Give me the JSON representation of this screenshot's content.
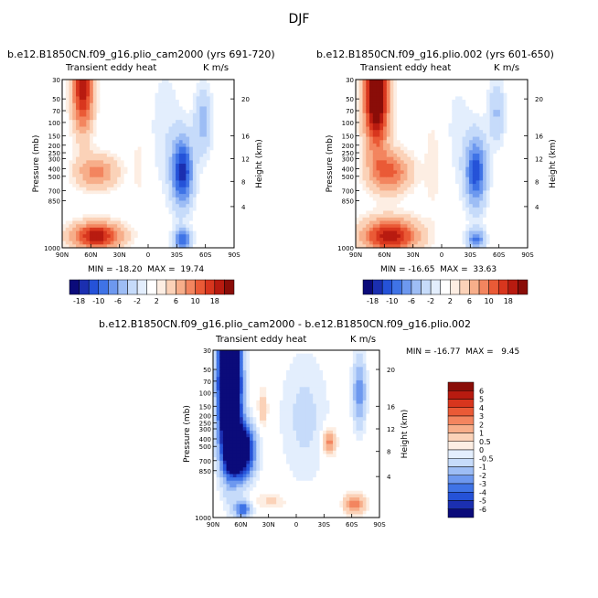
{
  "page_title": "DJF",
  "colors": {
    "blues": [
      "#0b0b7a",
      "#1b2fb0",
      "#2552d8",
      "#3f73e6",
      "#6d98ef",
      "#9dbdf5",
      "#c6dbfa",
      "#e3eefd"
    ],
    "reds": [
      "#fdeee3",
      "#fbd2b8",
      "#f7ae8a",
      "#f3855f",
      "#ea5a36",
      "#d8361e",
      "#b81b10",
      "#8a0d08"
    ]
  },
  "panels": [
    {
      "title": "b.e12.B1850CN.f09_g16.plio_cam2000 (yrs 691-720)",
      "left_label": "Transient eddy heat",
      "right_label": "K m/s",
      "stats": "MIN = -18.20  MAX =  19.74",
      "ylabel": "Pressure (mb)",
      "y2label": "Height (km)"
    },
    {
      "title": "b.e12.B1850CN.f09_g16.plio.002 (yrs 601-650)",
      "left_label": "Transient eddy heat",
      "right_label": "K m/s",
      "stats": "MIN = -16.65  MAX =  33.63",
      "ylabel": "Pressure (mb)",
      "y2label": "Height (km)"
    },
    {
      "title": "b.e12.B1850CN.f09_g16.plio_cam2000 - b.e12.B1850CN.f09_g16.plio.002",
      "left_label": "Transient eddy heat",
      "right_label": "K m/s",
      "stats": "MIN = -16.77  MAX =   9.45",
      "ylabel": "Pressure (mb)",
      "y2label": "Height (km)"
    }
  ],
  "chart_data": [
    {
      "type": "heatmap",
      "title": "b.e12.B1850CN.f09_g16.plio_cam2000 (yrs 691-720)",
      "xlabel": "",
      "ylabel": "Pressure (mb)",
      "y2label": "Height (km)",
      "x_ticks": [
        "90N",
        "60N",
        "30N",
        "0",
        "30S",
        "60S",
        "90S"
      ],
      "y_ticks": [
        "30",
        "50",
        "70",
        "100",
        "150",
        "200",
        "250",
        "300",
        "400",
        "500",
        "700",
        "850",
        "1000"
      ],
      "y2_ticks": [
        "20",
        "16",
        "12",
        "8",
        "4"
      ],
      "min": -18.2,
      "max": 19.74,
      "colorbar_labels": [
        "-18",
        "-10",
        "-6",
        "-2",
        "2",
        "6",
        "10",
        "18"
      ]
    },
    {
      "type": "heatmap",
      "title": "b.e12.B1850CN.f09_g16.plio.002 (yrs 601-650)",
      "xlabel": "",
      "ylabel": "Pressure (mb)",
      "y2label": "Height (km)",
      "x_ticks": [
        "90N",
        "60N",
        "30N",
        "0",
        "30S",
        "60S",
        "90S"
      ],
      "y_ticks": [
        "30",
        "50",
        "70",
        "100",
        "150",
        "200",
        "250",
        "300",
        "400",
        "500",
        "700",
        "850",
        "1000"
      ],
      "y2_ticks": [
        "20",
        "16",
        "12",
        "8",
        "4"
      ],
      "min": -16.65,
      "max": 33.63,
      "colorbar_labels": [
        "-18",
        "-10",
        "-6",
        "-2",
        "2",
        "6",
        "10",
        "18"
      ]
    },
    {
      "type": "heatmap",
      "title": "b.e12.B1850CN.f09_g16.plio_cam2000 - b.e12.B1850CN.f09_g16.plio.002",
      "xlabel": "",
      "ylabel": "Pressure (mb)",
      "y2label": "Height (km)",
      "x_ticks": [
        "90N",
        "60N",
        "30N",
        "0",
        "30S",
        "60S",
        "90S"
      ],
      "y_ticks": [
        "30",
        "50",
        "70",
        "100",
        "150",
        "200",
        "250",
        "300",
        "400",
        "500",
        "700",
        "850",
        "1000"
      ],
      "y2_ticks": [
        "20",
        "16",
        "12",
        "8",
        "4"
      ],
      "min": -16.77,
      "max": 9.45,
      "colorbar_labels": [
        "6",
        "5",
        "4",
        "3",
        "2",
        "1",
        "0.5",
        "0",
        "-0.5",
        "-1",
        "-2",
        "-3",
        "-4",
        "-5",
        "-6"
      ]
    }
  ]
}
